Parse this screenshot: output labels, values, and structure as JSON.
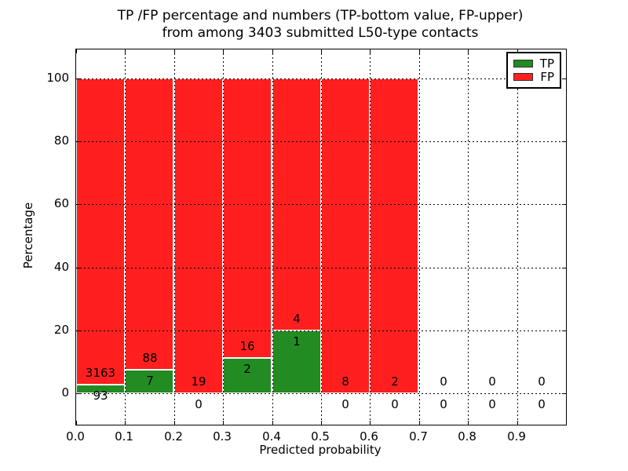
{
  "figure": {
    "title_line1": "TP /FP percentage and numbers (TP-bottom value, FP-upper)",
    "title_line2": "from among 3403 submitted L50-type contacts",
    "xlabel": "Predicted probability",
    "ylabel": "Percentage",
    "background_color": "#ffffff",
    "text_color": "#000000"
  },
  "legend": {
    "position": "upper right",
    "items": [
      {
        "label": "TP",
        "color": "#228B22"
      },
      {
        "label": "FP",
        "color": "#FF1F1F"
      }
    ]
  },
  "chart_data": {
    "type": "bar",
    "stacked": true,
    "normalized": "each non-empty bin stacks to 100%",
    "title": "TP /FP percentage and numbers (TP-bottom value, FP-upper) from among 3403 submitted L50-type contacts",
    "xlabel": "Predicted probability",
    "ylabel": "Percentage",
    "total_contacts": 3403,
    "bin_edges": [
      0.0,
      0.1,
      0.2,
      0.3,
      0.4,
      0.5,
      0.6,
      0.7,
      0.8,
      0.9,
      1.0
    ],
    "x_tick_labels": [
      "0.0",
      "0.1",
      "0.2",
      "0.3",
      "0.4",
      "0.5",
      "0.6",
      "0.7",
      "0.8",
      "0.9"
    ],
    "y_tick_values": [
      0,
      20,
      40,
      60,
      80,
      100
    ],
    "y_tick_labels": [
      "0",
      "20",
      "40",
      "60",
      "80",
      "100"
    ],
    "xlim": [
      0.0,
      1.0
    ],
    "ylim": [
      -10,
      109
    ],
    "grid": true,
    "grid_style": "dotted",
    "series": [
      {
        "name": "TP",
        "color": "#228B22",
        "counts": [
          93,
          7,
          0,
          2,
          1,
          0,
          0,
          0,
          0,
          0
        ]
      },
      {
        "name": "FP",
        "color": "#FF1F1F",
        "counts": [
          3163,
          88,
          19,
          16,
          4,
          8,
          2,
          0,
          0,
          0
        ]
      }
    ],
    "tp_percent_per_nonempty_bin": [
      2.86,
      7.37,
      0.0,
      11.11,
      20.0,
      0.0,
      0.0,
      null,
      null,
      null
    ]
  }
}
